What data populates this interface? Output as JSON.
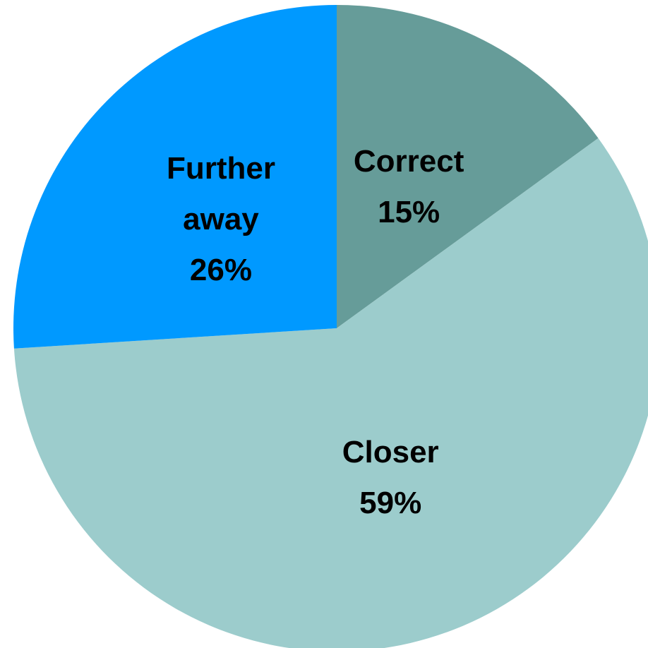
{
  "chart_data": {
    "type": "pie",
    "categories": [
      "Correct",
      "Closer",
      "Further away"
    ],
    "values": [
      15,
      59,
      26
    ],
    "value_labels": [
      "15%",
      "59%",
      "26%"
    ],
    "colors": [
      "#669c99",
      "#9ccccc",
      "#0099ff"
    ]
  }
}
